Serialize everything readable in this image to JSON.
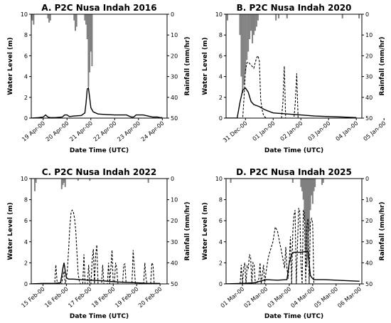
{
  "chart_data": [
    {
      "type": "line",
      "title": "A. P2C Nusa Indah 2016",
      "xlabel": "Date Time (UTC)",
      "ylabel": "Water Level (m)",
      "y2label": "Rainfall (mm/hr)",
      "ylim": [
        0,
        10
      ],
      "y2lim": [
        50,
        0
      ],
      "y_ticks": [
        "0",
        "2",
        "4",
        "6",
        "8",
        "10"
      ],
      "y2_ticks": [
        "50",
        "40",
        "30",
        "20",
        "10",
        "0"
      ],
      "x_tick_labels": [
        "19 Apr-00",
        "20 Apr-00",
        "21 Apr-00",
        "22 Apr-00",
        "23 Apr-00",
        "24 Apr-00"
      ],
      "xlim": [
        -0.5,
        5.2
      ],
      "series": [
        {
          "style": "solid",
          "x": [
            -0.5,
            -0.2,
            0,
            0.1,
            0.2,
            0.3,
            0.5,
            0.8,
            0.9,
            1.0,
            1.1,
            1.3,
            1.6,
            1.75,
            1.8,
            1.85,
            1.9,
            1.95,
            2.0,
            2.1,
            2.3,
            2.6,
            3.0,
            3.3,
            3.5,
            3.7,
            3.8,
            3.9,
            4.2,
            4.4,
            4.6,
            4.8,
            4.9,
            5.0
          ],
          "y": [
            0,
            0.05,
            0.1,
            0.3,
            0.1,
            0.05,
            0.05,
            0.1,
            0.3,
            0.3,
            0.15,
            0.2,
            0.25,
            0.5,
            1.5,
            2.8,
            2.9,
            2.0,
            1.0,
            0.6,
            0.4,
            0.35,
            0.3,
            0.3,
            0.3,
            0.1,
            0.1,
            0.3,
            0.3,
            0.2,
            0.1,
            0.1,
            0.05,
            0.05
          ]
        },
        {
          "style": "dashed",
          "x": [],
          "y": []
        }
      ],
      "rainfall": [
        {
          "x": -0.5,
          "v": 2
        },
        {
          "x": -0.45,
          "v": 3
        },
        {
          "x": -0.4,
          "v": 5
        },
        {
          "x": 0.2,
          "v": 2
        },
        {
          "x": 0.25,
          "v": 4
        },
        {
          "x": 0.3,
          "v": 3
        },
        {
          "x": 1.3,
          "v": 3
        },
        {
          "x": 1.35,
          "v": 8
        },
        {
          "x": 1.4,
          "v": 6
        },
        {
          "x": 1.75,
          "v": 3
        },
        {
          "x": 1.8,
          "v": 5
        },
        {
          "x": 1.85,
          "v": 12
        },
        {
          "x": 1.9,
          "v": 35
        },
        {
          "x": 1.95,
          "v": 28
        },
        {
          "x": 2.0,
          "v": 18
        },
        {
          "x": 2.05,
          "v": 25
        }
      ]
    },
    {
      "type": "line",
      "title": "B. P2C Nusa Indah 2020",
      "xlabel": "Date Time (UTC)",
      "ylabel": "Water Level (m)",
      "y2label": "Rainfall (mm/hr)",
      "ylim": [
        0,
        10
      ],
      "y2lim": [
        50,
        0
      ],
      "y_ticks": [
        "0",
        "2",
        "4",
        "6",
        "8",
        "10"
      ],
      "y2_ticks": [
        "50",
        "40",
        "30",
        "20",
        "10",
        "0"
      ],
      "x_tick_labels": [
        "31 Dec-00",
        "01 Jan-00",
        "02 Jan-00",
        "03 Jan-00",
        "04 Jan-00",
        "05 Jan-00"
      ],
      "xlim": [
        -0.7,
        4.2
      ],
      "series": [
        {
          "style": "solid",
          "x": [
            -0.7,
            -0.3,
            -0.2,
            -0.1,
            0,
            0.1,
            0.2,
            0.3,
            0.5,
            0.7,
            1.0,
            1.5,
            2.0,
            2.5,
            3.0,
            3.5,
            4.0
          ],
          "y": [
            0,
            0,
            1.5,
            2.7,
            2.9,
            2.5,
            1.6,
            1.3,
            1.1,
            0.8,
            0.5,
            0.4,
            0.3,
            0.2,
            0.15,
            0.1,
            0.05
          ]
        },
        {
          "style": "dashed",
          "x": [
            -0.7,
            -0.1,
            -0.05,
            0,
            0.05,
            0.1,
            0.2,
            0.3,
            0.35,
            0.4,
            0.45,
            0.5,
            0.55,
            0.6,
            0.65,
            0.7,
            0.75,
            1.3,
            1.35,
            1.4,
            1.45,
            1.75,
            1.8,
            1.85,
            1.9,
            4.2
          ],
          "y": [
            0,
            0,
            2.0,
            4.6,
            5.3,
            5.4,
            5.1,
            4.8,
            5.3,
            5.8,
            6.0,
            5.5,
            1.8,
            0.8,
            0.3,
            0.1,
            0,
            0,
            1.5,
            5.0,
            0,
            0,
            1.5,
            4.3,
            0,
            0
          ]
        }
      ],
      "rainfall": [
        {
          "x": -0.65,
          "v": 3
        },
        {
          "x": -0.2,
          "v": 10
        },
        {
          "x": -0.15,
          "v": 30
        },
        {
          "x": -0.1,
          "v": 38
        },
        {
          "x": -0.05,
          "v": 34
        },
        {
          "x": 0,
          "v": 28
        },
        {
          "x": 0.05,
          "v": 22
        },
        {
          "x": 0.1,
          "v": 18
        },
        {
          "x": 0.15,
          "v": 12
        },
        {
          "x": 0.2,
          "v": 8
        },
        {
          "x": 0.25,
          "v": 14
        },
        {
          "x": 0.3,
          "v": 10
        },
        {
          "x": 0.35,
          "v": 8
        },
        {
          "x": 0.4,
          "v": 6
        },
        {
          "x": 0.45,
          "v": 3
        },
        {
          "x": 1.1,
          "v": 3
        },
        {
          "x": 1.2,
          "v": 2
        },
        {
          "x": 1.5,
          "v": 2
        },
        {
          "x": 3.5,
          "v": 2
        },
        {
          "x": 4.1,
          "v": 2
        }
      ]
    },
    {
      "type": "line",
      "title": "C. P2C Nusa Indah 2022",
      "xlabel": "Date Time (UTC)",
      "ylabel": "Water Level (m)",
      "y2label": "Rainfall (mm/hr)",
      "ylim": [
        0,
        10
      ],
      "y2lim": [
        50,
        0
      ],
      "y_ticks": [
        "0",
        "2",
        "4",
        "6",
        "8",
        "10"
      ],
      "y2_ticks": [
        "50",
        "40",
        "30",
        "20",
        "10",
        "0"
      ],
      "x_tick_labels": [
        "15 Feb-00",
        "16 Feb-00",
        "17 Feb-00",
        "18 Feb-00",
        "19 Feb-00",
        "20 Feb-00"
      ],
      "xlim": [
        -0.5,
        5.3
      ],
      "series": [
        {
          "style": "solid",
          "x": [
            -0.5,
            0,
            0.5,
            0.75,
            0.85,
            0.9,
            0.95,
            1.0,
            1.05,
            1.1,
            1.3,
            1.6,
            2.0,
            2.5,
            3.0,
            3.5,
            4.0,
            4.5,
            5.0
          ],
          "y": [
            0,
            0.05,
            0.05,
            0.1,
            1.5,
            2.0,
            1.2,
            0.6,
            0.5,
            0.45,
            0.45,
            0.4,
            0.35,
            0.3,
            0.2,
            0.15,
            0.1,
            0.05,
            0.05
          ]
        },
        {
          "style": "dashed",
          "x": [
            -0.5,
            0.5,
            0.55,
            0.6,
            0.65,
            0.8,
            0.85,
            0.9,
            0.95,
            1.0,
            1.05,
            1.1,
            1.15,
            1.2,
            1.25,
            1.3,
            1.35,
            1.4,
            1.45,
            1.5,
            1.55,
            1.6,
            1.7,
            1.75,
            1.8,
            1.9,
            1.95,
            2.0,
            2.05,
            2.1,
            2.15,
            2.2,
            2.25,
            2.3,
            2.35,
            2.4,
            2.5,
            2.55,
            2.6,
            2.65,
            2.75,
            2.8,
            2.85,
            2.9,
            2.95,
            3.0,
            3.05,
            3.1,
            3.15,
            3.2,
            3.25,
            3.4,
            3.45,
            3.5,
            3.55,
            3.7,
            3.8,
            3.85,
            3.9,
            3.95,
            4.1,
            4.3,
            4.35,
            4.4,
            4.45,
            4.6,
            4.65,
            4.7,
            4.75,
            5.3
          ],
          "y": [
            0,
            0,
            1.8,
            0.3,
            0,
            0,
            0.8,
            1.2,
            0,
            0.5,
            1.5,
            3.5,
            5.5,
            6.8,
            7.0,
            6.8,
            6.2,
            5.0,
            3.0,
            1.0,
            0.3,
            0,
            0,
            2.8,
            0,
            0,
            1.8,
            0,
            0,
            2.2,
            3.3,
            0,
            2.8,
            3.7,
            0,
            0,
            0,
            1.8,
            0,
            0,
            0,
            2.0,
            0,
            1.5,
            3.2,
            0,
            0,
            2.0,
            1.5,
            0,
            0,
            0,
            1.8,
            1.9,
            0,
            0,
            0,
            3.2,
            1.5,
            0,
            0,
            0,
            2.0,
            0.5,
            0,
            0,
            2.0,
            1.8,
            0,
            0
          ]
        }
      ],
      "rainfall": [
        {
          "x": -0.35,
          "v": 6
        },
        {
          "x": -0.3,
          "v": 2
        },
        {
          "x": 0.8,
          "v": 5
        },
        {
          "x": 0.85,
          "v": 3
        },
        {
          "x": 0.9,
          "v": 2
        },
        {
          "x": 0.95,
          "v": 4
        },
        {
          "x": 1.5,
          "v": 1
        },
        {
          "x": 2.0,
          "v": 1
        },
        {
          "x": 4.5,
          "v": 2
        }
      ]
    },
    {
      "type": "line",
      "title": "D. P2C Nusa Indah 2025",
      "xlabel": "Date Time (UTC)",
      "ylabel": "Water Level (m)",
      "y2label": "Rainfall (mm/hr)",
      "ylim": [
        0,
        10
      ],
      "y2lim": [
        50,
        0
      ],
      "y_ticks": [
        "0",
        "2",
        "4",
        "6",
        "8",
        "10"
      ],
      "y2_ticks": [
        "50",
        "40",
        "30",
        "20",
        "10",
        "0"
      ],
      "x_tick_labels": [
        "01 Mar-00",
        "02 Mar-00",
        "03 Mar-00",
        "04 Mar-00",
        "05 Mar-00",
        "06 Mar-00"
      ],
      "xlim": [
        -0.7,
        5.1
      ],
      "series": [
        {
          "style": "solid",
          "x": [
            -0.7,
            0,
            0.5,
            1.0,
            1.5,
            1.9,
            2.0,
            2.1,
            2.2,
            2.5,
            2.8,
            2.9,
            3.0,
            3.05,
            3.1,
            3.5,
            4.0,
            4.5,
            5.0
          ],
          "y": [
            0,
            0.05,
            0.1,
            0.4,
            0.35,
            0.4,
            2.0,
            2.8,
            3.0,
            3.0,
            3.1,
            0.8,
            0.5,
            0.4,
            0.4,
            0.4,
            0.35,
            0.3,
            0.25
          ]
        },
        {
          "style": "dashed",
          "x": [
            -0.7,
            -0.1,
            -0.05,
            0,
            0.05,
            0.1,
            0.15,
            0.2,
            0.25,
            0.3,
            0.35,
            0.4,
            0.45,
            0.5,
            0.55,
            0.6,
            0.7,
            0.75,
            0.8,
            0.9,
            0.95,
            1.0,
            1.1,
            1.3,
            1.4,
            1.5,
            1.6,
            1.65,
            1.7,
            1.8,
            1.85,
            1.9,
            1.95,
            2.0,
            2.05,
            2.1,
            2.15,
            2.2,
            2.25,
            2.3,
            2.4,
            2.45,
            2.5,
            2.55,
            2.6,
            2.65,
            2.7,
            2.75,
            2.8,
            2.85,
            2.9,
            2.95,
            3.0,
            3.05,
            3.1,
            3.15,
            3.2,
            3.25,
            5.1
          ],
          "y": [
            0,
            0,
            1.8,
            0,
            1.5,
            2.0,
            0,
            1.7,
            1.5,
            2.8,
            2.5,
            0,
            2.0,
            1.8,
            0,
            0,
            0.5,
            2.0,
            0,
            1.8,
            0,
            1.0,
            2.5,
            4.0,
            5.4,
            5.0,
            3.8,
            3.3,
            2.7,
            1.5,
            3.5,
            1.5,
            0.5,
            2.2,
            4.5,
            0,
            5.0,
            6.5,
            7.0,
            0,
            7.2,
            6.8,
            2.0,
            0,
            7.0,
            6.7,
            0,
            5.5,
            6.2,
            0,
            5.8,
            6.2,
            5.8,
            0,
            0,
            0,
            0,
            0,
            0
          ]
        }
      ],
      "rainfall": [
        {
          "x": -0.5,
          "v": 2
        },
        {
          "x": 2.15,
          "v": 2
        },
        {
          "x": 2.5,
          "v": 4
        },
        {
          "x": 2.55,
          "v": 6
        },
        {
          "x": 2.6,
          "v": 10
        },
        {
          "x": 2.65,
          "v": 20
        },
        {
          "x": 2.7,
          "v": 35
        },
        {
          "x": 2.75,
          "v": 42
        },
        {
          "x": 2.8,
          "v": 38
        },
        {
          "x": 2.85,
          "v": 25
        },
        {
          "x": 2.9,
          "v": 15
        },
        {
          "x": 2.95,
          "v": 8
        },
        {
          "x": 3.0,
          "v": 12
        },
        {
          "x": 3.05,
          "v": 6
        },
        {
          "x": 3.1,
          "v": 4
        },
        {
          "x": 3.4,
          "v": 3
        },
        {
          "x": 3.45,
          "v": 2
        }
      ]
    }
  ]
}
